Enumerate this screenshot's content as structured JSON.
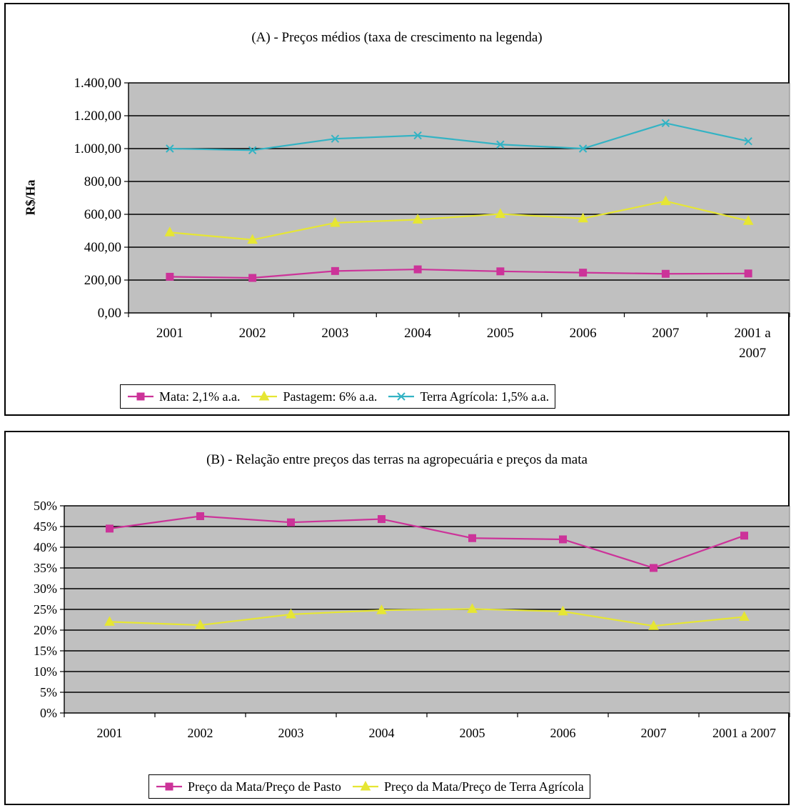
{
  "chart_data": [
    {
      "id": "A",
      "type": "line",
      "title": "(A) - Preços médios (taxa de crescimento na legenda)",
      "ylabel": "R$/Ha",
      "ylim": [
        0,
        1400
      ],
      "yticks": [
        "0,00",
        "200,00",
        "400,00",
        "600,00",
        "800,00",
        "1.000,00",
        "1.200,00",
        "1.400,00"
      ],
      "categories": [
        "2001",
        "2002",
        "2003",
        "2004",
        "2005",
        "2006",
        "2007",
        "2001 a 2007"
      ],
      "grid": true,
      "legend": "bottom",
      "series": [
        {
          "name": "Mata: 2,1% a.a.",
          "color": "#cc3399",
          "marker": "square",
          "values": [
            220,
            213,
            255,
            265,
            253,
            245,
            238,
            240
          ]
        },
        {
          "name": "Pastagem: 6% a.a.",
          "color": "#e6e633",
          "marker": "triangle",
          "values": [
            490,
            445,
            548,
            568,
            602,
            575,
            680,
            560
          ]
        },
        {
          "name": "Terra Agrícola: 1,5% a.a.",
          "color": "#33b3c4",
          "marker": "x",
          "values": [
            1000,
            990,
            1060,
            1080,
            1025,
            1000,
            1155,
            1045
          ]
        }
      ]
    },
    {
      "id": "B",
      "type": "line",
      "title": "(B) - Relação entre preços das terras na agropecuária e preços da mata",
      "ylabel": "",
      "ylim": [
        0,
        50
      ],
      "yticks": [
        "0%",
        "5%",
        "10%",
        "15%",
        "20%",
        "25%",
        "30%",
        "35%",
        "40%",
        "45%",
        "50%"
      ],
      "categories": [
        "2001",
        "2002",
        "2003",
        "2004",
        "2005",
        "2006",
        "2007",
        "2001 a 2007"
      ],
      "grid": true,
      "legend": "bottom",
      "series": [
        {
          "name": "Preço da Mata/Preço de Pasto",
          "color": "#cc3399",
          "marker": "square",
          "values": [
            44.5,
            47.5,
            46.0,
            46.8,
            42.2,
            41.9,
            35.0,
            42.8
          ]
        },
        {
          "name": "Preço da Mata/Preço de Terra Agrícola",
          "color": "#e6e633",
          "marker": "triangle",
          "values": [
            22.0,
            21.2,
            23.8,
            24.8,
            25.1,
            24.5,
            21.0,
            23.2
          ]
        }
      ]
    }
  ]
}
